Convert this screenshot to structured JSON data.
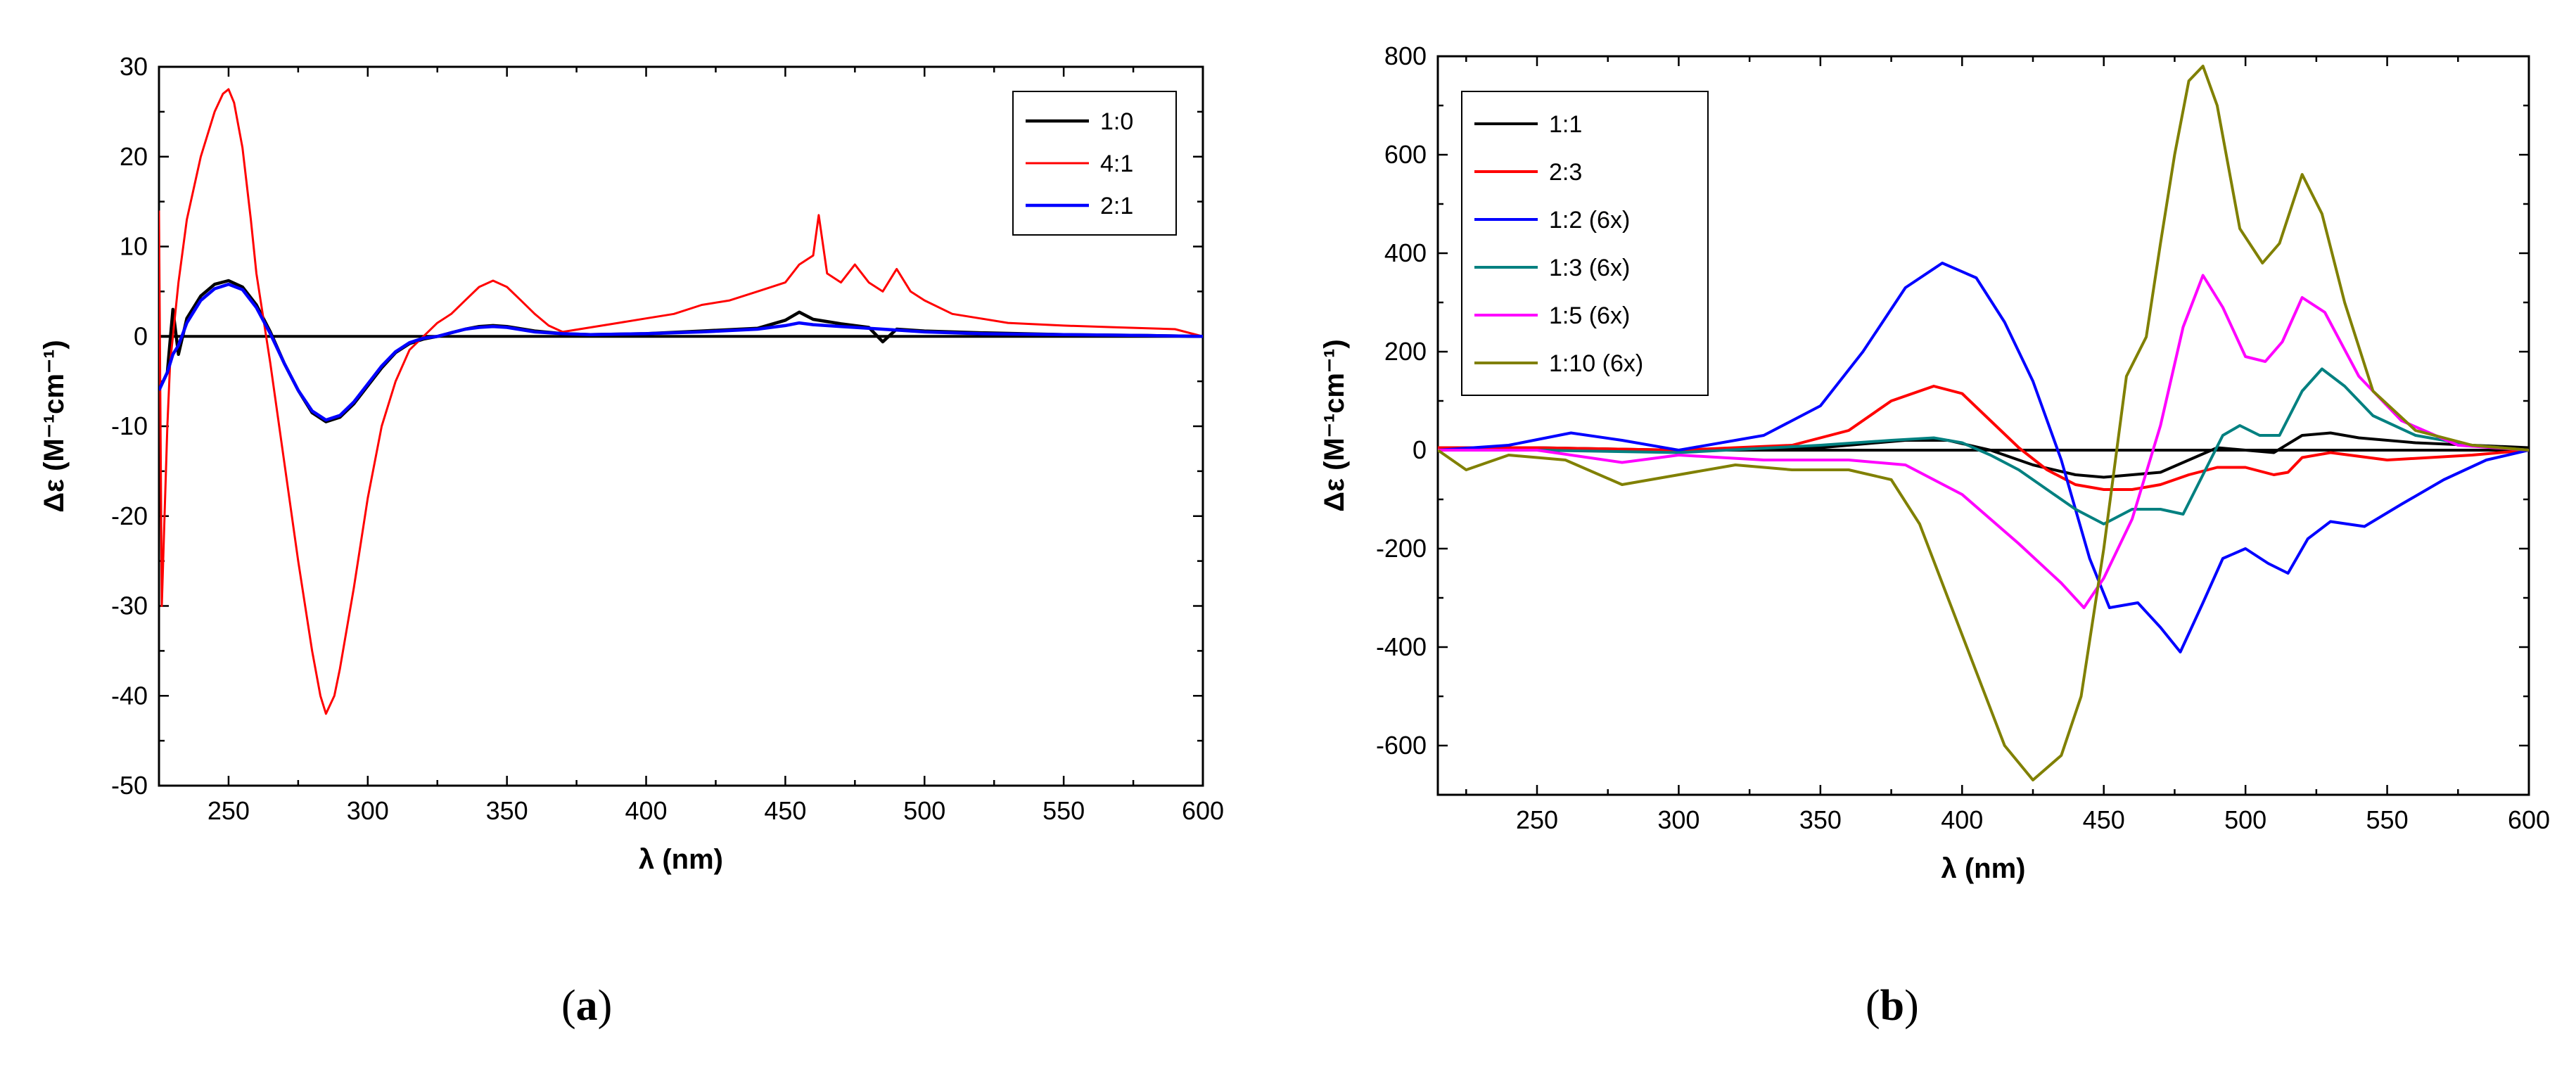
{
  "chart_data": [
    {
      "type": "line",
      "panel_label": "a",
      "xlabel": "λ (nm)",
      "ylabel": "Δε (M⁻¹cm⁻¹)",
      "xlim": [
        225,
        600
      ],
      "ylim": [
        -50,
        30
      ],
      "xticks": [
        250,
        300,
        350,
        400,
        450,
        500,
        550,
        600
      ],
      "yticks": [
        -50,
        -40,
        -30,
        -20,
        -10,
        0,
        10,
        20,
        30
      ],
      "zero_line": true,
      "grid": false,
      "legend_position": "top-right",
      "series": [
        {
          "name": "1:0",
          "color": "#000000",
          "width": 4.5,
          "x": [
            225,
            228,
            230,
            232,
            235,
            240,
            245,
            250,
            255,
            260,
            265,
            270,
            275,
            280,
            285,
            290,
            295,
            300,
            305,
            310,
            315,
            320,
            325,
            330,
            335,
            340,
            345,
            350,
            360,
            370,
            380,
            400,
            420,
            440,
            450,
            455,
            460,
            470,
            480,
            485,
            490,
            500,
            520,
            550,
            580,
            600
          ],
          "y": [
            -6,
            -4,
            3,
            -2,
            2,
            4.5,
            5.8,
            6.2,
            5.5,
            3.5,
            0.5,
            -3,
            -6,
            -8.5,
            -9.5,
            -9,
            -7.5,
            -5.5,
            -3.5,
            -1.8,
            -0.8,
            -0.3,
            0,
            0.4,
            0.8,
            1.1,
            1.2,
            1.1,
            0.6,
            0.3,
            0.2,
            0.3,
            0.6,
            0.9,
            1.8,
            2.7,
            1.9,
            1.4,
            1.0,
            -0.6,
            0.8,
            0.6,
            0.4,
            0.2,
            0.1,
            0
          ]
        },
        {
          "name": "4:1",
          "color": "#ff0000",
          "width": 3,
          "x": [
            225,
            226,
            227,
            228,
            229,
            230,
            232,
            235,
            240,
            245,
            248,
            250,
            252,
            255,
            258,
            260,
            265,
            270,
            275,
            280,
            283,
            285,
            288,
            290,
            295,
            300,
            305,
            310,
            315,
            320,
            325,
            330,
            335,
            340,
            345,
            350,
            355,
            360,
            365,
            370,
            380,
            390,
            400,
            410,
            420,
            430,
            440,
            450,
            455,
            460,
            462,
            465,
            470,
            475,
            480,
            485,
            490,
            495,
            500,
            510,
            520,
            530,
            550,
            570,
            590,
            600
          ],
          "y": [
            14,
            -30,
            -20,
            -10,
            -3,
            0,
            6,
            13,
            20,
            25,
            27,
            27.5,
            26,
            21,
            13,
            7,
            -3,
            -14,
            -25,
            -35,
            -40,
            -42,
            -40,
            -37,
            -28,
            -18,
            -10,
            -5,
            -1.5,
            0,
            1.5,
            2.5,
            4,
            5.5,
            6.2,
            5.5,
            4,
            2.5,
            1.2,
            0.5,
            1,
            1.5,
            2,
            2.5,
            3.5,
            4,
            5,
            6,
            8,
            9,
            13.5,
            7,
            6,
            8,
            6,
            5,
            7.5,
            5,
            4,
            2.5,
            2,
            1.5,
            1.2,
            1,
            0.8,
            0
          ]
        },
        {
          "name": "2:1",
          "color": "#0000ff",
          "width": 4.5,
          "x": [
            225,
            228,
            230,
            232,
            235,
            240,
            245,
            250,
            255,
            260,
            265,
            270,
            275,
            280,
            285,
            290,
            295,
            300,
            305,
            310,
            315,
            320,
            325,
            330,
            335,
            340,
            345,
            350,
            360,
            370,
            380,
            400,
            420,
            440,
            450,
            455,
            460,
            470,
            480,
            490,
            500,
            520,
            550,
            580,
            600
          ],
          "y": [
            -6,
            -4,
            -2,
            -1,
            1.5,
            4,
            5.3,
            5.8,
            5.2,
            3.2,
            0.3,
            -3,
            -6,
            -8.3,
            -9.3,
            -8.8,
            -7.3,
            -5.3,
            -3.3,
            -1.7,
            -0.7,
            -0.2,
            0,
            0.4,
            0.8,
            1.0,
            1.1,
            1.0,
            0.5,
            0.3,
            0.2,
            0.3,
            0.5,
            0.8,
            1.2,
            1.5,
            1.3,
            1.1,
            0.9,
            0.7,
            0.5,
            0.3,
            0.2,
            0.1,
            0
          ]
        }
      ]
    },
    {
      "type": "line",
      "panel_label": "b",
      "xlabel": "λ (nm)",
      "ylabel": "Δε (M⁻¹cm⁻¹)",
      "xlim": [
        215,
        600
      ],
      "ylim": [
        -700,
        800
      ],
      "xticks": [
        250,
        300,
        350,
        400,
        450,
        500,
        550,
        600
      ],
      "yticks": [
        -600,
        -400,
        -200,
        0,
        200,
        400,
        600,
        800
      ],
      "zero_line": true,
      "grid": false,
      "legend_position": "top-left",
      "series": [
        {
          "name": "1:1",
          "color": "#000000",
          "width": 4,
          "x": [
            215,
            250,
            300,
            350,
            380,
            395,
            410,
            425,
            440,
            450,
            460,
            470,
            480,
            490,
            500,
            510,
            520,
            530,
            540,
            560,
            600
          ],
          "y": [
            5,
            5,
            0,
            5,
            20,
            20,
            0,
            -30,
            -50,
            -55,
            -50,
            -45,
            -20,
            5,
            0,
            -5,
            30,
            35,
            25,
            15,
            5
          ]
        },
        {
          "name": "2:3",
          "color": "#ff0000",
          "width": 4,
          "x": [
            215,
            250,
            300,
            340,
            360,
            375,
            390,
            400,
            410,
            420,
            430,
            440,
            450,
            460,
            470,
            480,
            490,
            500,
            510,
            515,
            520,
            530,
            550,
            580,
            600
          ],
          "y": [
            5,
            5,
            0,
            10,
            40,
            100,
            130,
            115,
            60,
            5,
            -40,
            -70,
            -80,
            -80,
            -70,
            -50,
            -35,
            -35,
            -50,
            -45,
            -15,
            -5,
            -20,
            -10,
            0
          ]
        },
        {
          "name": "1:2 (6x)",
          "color": "#0000ff",
          "width": 4,
          "x": [
            215,
            240,
            262,
            280,
            300,
            330,
            350,
            365,
            380,
            393,
            405,
            415,
            425,
            435,
            445,
            452,
            462,
            470,
            477,
            485,
            492,
            500,
            508,
            515,
            522,
            530,
            542,
            555,
            570,
            585,
            600
          ],
          "y": [
            0,
            10,
            35,
            20,
            0,
            30,
            90,
            200,
            330,
            380,
            350,
            260,
            140,
            -20,
            -220,
            -320,
            -310,
            -360,
            -410,
            -310,
            -220,
            -200,
            -230,
            -250,
            -180,
            -145,
            -155,
            -110,
            -60,
            -20,
            0
          ]
        },
        {
          "name": "1:3 (6x)",
          "color": "#008080",
          "width": 4,
          "x": [
            215,
            250,
            300,
            350,
            375,
            390,
            400,
            410,
            420,
            430,
            440,
            450,
            460,
            470,
            478,
            485,
            492,
            498,
            505,
            512,
            520,
            527,
            535,
            545,
            560,
            580,
            600
          ],
          "y": [
            0,
            0,
            -5,
            10,
            20,
            25,
            15,
            -10,
            -40,
            -80,
            -120,
            -150,
            -120,
            -120,
            -130,
            -50,
            30,
            50,
            30,
            30,
            120,
            165,
            130,
            70,
            30,
            10,
            0
          ]
        },
        {
          "name": "1:5 (6x)",
          "color": "#ff00ff",
          "width": 4,
          "x": [
            215,
            250,
            280,
            300,
            330,
            360,
            380,
            400,
            420,
            435,
            443,
            450,
            460,
            470,
            478,
            485,
            492,
            500,
            507,
            513,
            520,
            528,
            540,
            555,
            575,
            600
          ],
          "y": [
            0,
            0,
            -25,
            -10,
            -20,
            -20,
            -30,
            -90,
            -190,
            -270,
            -320,
            -260,
            -140,
            50,
            250,
            355,
            290,
            190,
            180,
            220,
            310,
            280,
            150,
            60,
            10,
            0
          ]
        },
        {
          "name": "1:10 (6x)",
          "color": "#808000",
          "width": 4,
          "x": [
            215,
            225,
            240,
            260,
            280,
            300,
            320,
            340,
            360,
            375,
            385,
            395,
            405,
            415,
            425,
            435,
            442,
            450,
            458,
            465,
            470,
            475,
            480,
            485,
            490,
            498,
            506,
            512,
            520,
            527,
            535,
            545,
            560,
            580,
            600
          ],
          "y": [
            0,
            -40,
            -10,
            -20,
            -70,
            -50,
            -30,
            -40,
            -40,
            -60,
            -150,
            -300,
            -450,
            -600,
            -670,
            -620,
            -500,
            -200,
            150,
            230,
            420,
            600,
            750,
            780,
            700,
            450,
            380,
            420,
            560,
            480,
            300,
            120,
            40,
            10,
            0
          ]
        }
      ]
    }
  ]
}
